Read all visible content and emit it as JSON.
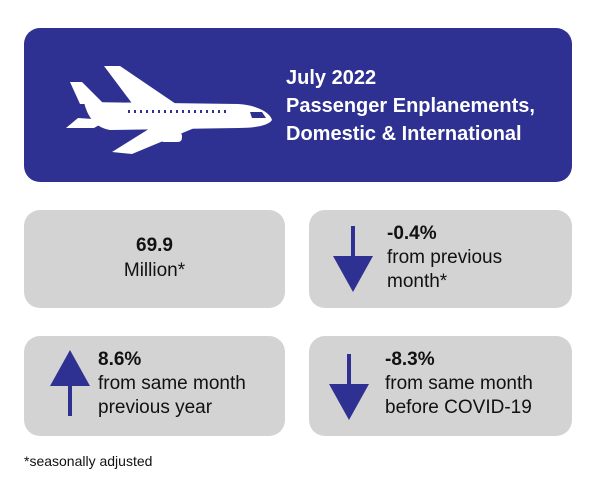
{
  "header": {
    "title_line1": "July 2022",
    "title_line2": "Passenger Enplanements,",
    "title_line3": "Domestic & International",
    "background_color": "#2e3192",
    "icon": "airplane-icon"
  },
  "cards": {
    "total": {
      "value": "69.9",
      "label": "Million*"
    },
    "prev_month": {
      "value": "-0.4%",
      "label_line1": "from previous",
      "label_line2": "month*",
      "direction": "down"
    },
    "prev_year": {
      "value": "8.6%",
      "label_line1": "from same month",
      "label_line2": "previous year",
      "direction": "up"
    },
    "pre_covid": {
      "value": "-8.3%",
      "label_line1": "from same month",
      "label_line2": "before COVID-19",
      "direction": "down"
    }
  },
  "arrow_color": "#2e3192",
  "card_color": "#d3d3d3",
  "footnote": "*seasonally adjusted"
}
